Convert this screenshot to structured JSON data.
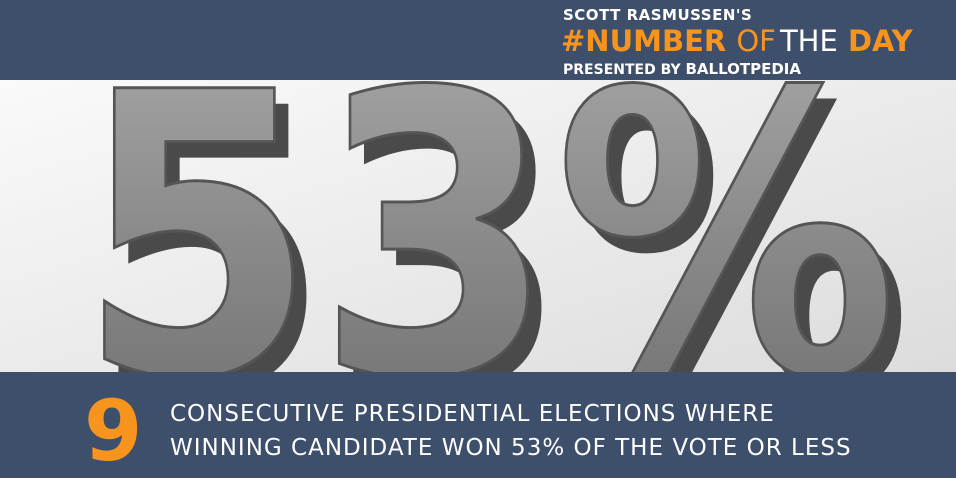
{
  "header": {
    "presenter_line": "SCOTT RASMUSSEN'S",
    "title_parts": [
      "#NUMBER",
      "OF",
      "THE",
      "DAY"
    ],
    "presented_by": "PRESENTED BY",
    "sponsor": "BALLOTPEDIA"
  },
  "hero": {
    "text": "53%"
  },
  "footer": {
    "number": "9",
    "lines": [
      "CONSECUTIVE PRESIDENTIAL ELECTIONS WHERE",
      "WINNING CANDIDATE WON 53% OF THE VOTE OR LESS"
    ]
  }
}
